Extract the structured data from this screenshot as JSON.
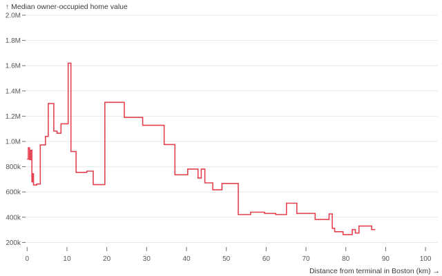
{
  "header": {
    "title": "↑ Median owner-occupied home value"
  },
  "colors": {
    "line": "#e5414e",
    "grid": "#e7e7e7",
    "tick_text": "#555555",
    "tick_mark": "#6f6f6f",
    "label_text": "#3b3b3b"
  },
  "chart_data": {
    "type": "line",
    "curve": "step-after",
    "title": "Median owner-occupied home value",
    "xlabel": "Distance from terminal in Boston (km)",
    "xlabel_display": "Distance from terminal in Boston (km) →",
    "ylabel": "Median owner-occupied home value",
    "xlim": [
      0,
      100
    ],
    "ylim": [
      200000,
      2000000
    ],
    "grid": "horizontal-only",
    "legend": "none",
    "x_ticks": [
      0,
      10,
      20,
      30,
      40,
      50,
      60,
      70,
      80,
      90,
      100
    ],
    "y_ticks": [
      {
        "value": 2000000,
        "label": "2.0M"
      },
      {
        "value": 1800000,
        "label": "1.8M"
      },
      {
        "value": 1600000,
        "label": "1.6M"
      },
      {
        "value": 1400000,
        "label": "1.4M"
      },
      {
        "value": 1200000,
        "label": "1.2M"
      },
      {
        "value": 1000000,
        "label": "1.0M"
      },
      {
        "value": 800000,
        "label": "800k"
      },
      {
        "value": 600000,
        "label": "600k"
      },
      {
        "value": 400000,
        "label": "400k"
      },
      {
        "value": 200000,
        "label": "200k"
      }
    ],
    "points": [
      [
        0.0,
        860000
      ],
      [
        0.3,
        950000
      ],
      [
        0.6,
        855000
      ],
      [
        0.9,
        930000
      ],
      [
        1.2,
        680000
      ],
      [
        1.4,
        745000
      ],
      [
        1.6,
        655000
      ],
      [
        2.4,
        663000
      ],
      [
        3.3,
        972000
      ],
      [
        4.6,
        1040000
      ],
      [
        5.3,
        1300000
      ],
      [
        6.7,
        1082000
      ],
      [
        7.5,
        1065000
      ],
      [
        8.5,
        1140000
      ],
      [
        10.3,
        1620000
      ],
      [
        11.0,
        920000
      ],
      [
        12.3,
        755000
      ],
      [
        15.0,
        765000
      ],
      [
        16.6,
        658000
      ],
      [
        19.5,
        1310000
      ],
      [
        24.4,
        1190000
      ],
      [
        29.0,
        1128000
      ],
      [
        34.4,
        976000
      ],
      [
        37.1,
        736000
      ],
      [
        40.3,
        781000
      ],
      [
        42.9,
        710000
      ],
      [
        43.7,
        781000
      ],
      [
        44.6,
        672000
      ],
      [
        46.6,
        617000
      ],
      [
        48.9,
        667000
      ],
      [
        53.0,
        421000
      ],
      [
        56.1,
        440000
      ],
      [
        59.6,
        430000
      ],
      [
        62.4,
        421000
      ],
      [
        65.1,
        511000
      ],
      [
        67.7,
        430000
      ],
      [
        72.3,
        382000
      ],
      [
        75.8,
        426000
      ],
      [
        76.6,
        312000
      ],
      [
        77.2,
        285000
      ],
      [
        79.3,
        262000
      ],
      [
        81.6,
        302000
      ],
      [
        82.4,
        275000
      ],
      [
        83.3,
        330000
      ],
      [
        86.5,
        302000
      ],
      [
        87.4,
        302000
      ]
    ]
  }
}
